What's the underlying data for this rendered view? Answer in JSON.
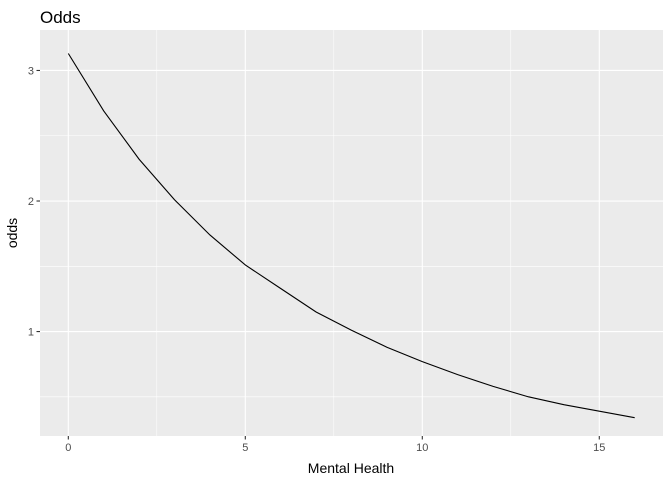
{
  "chart_data": {
    "type": "line",
    "title": "Odds",
    "xlabel": "Mental Health",
    "ylabel": "odds",
    "xlim": [
      -0.8,
      16.8
    ],
    "ylim": [
      0.2,
      3.31
    ],
    "x_ticks": [
      0,
      5,
      10,
      15
    ],
    "y_ticks": [
      1,
      2,
      3
    ],
    "grid": true,
    "background": "#ebebeb",
    "grid_color": "#ffffff",
    "line_color": "#000000",
    "series": [
      {
        "x": [
          0,
          1,
          2,
          3,
          4,
          5,
          6,
          7,
          8,
          9,
          10,
          11,
          12,
          13,
          14,
          15,
          16
        ],
        "values": [
          3.13,
          2.69,
          2.32,
          2.01,
          1.74,
          1.51,
          1.33,
          1.15,
          1.01,
          0.88,
          0.77,
          0.67,
          0.58,
          0.5,
          0.44,
          0.39,
          0.34
        ]
      }
    ]
  }
}
